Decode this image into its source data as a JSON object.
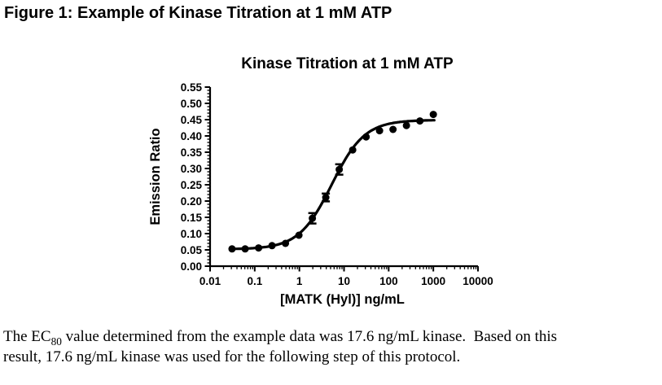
{
  "page": {
    "figure_caption": "Figure 1: Example of Kinase Titration at 1 mM ATP"
  },
  "chart_data": {
    "type": "scatter",
    "title": "Kinase Titration at 1 mM ATP",
    "xlabel": "[MATK (Hyl)] ng/mL",
    "ylabel": "Emission Ratio",
    "x_scale": "log",
    "xlim": [
      0.01,
      10000
    ],
    "ylim": [
      0,
      0.55
    ],
    "y_tick_step": 0.05,
    "y_minor_step": 0.01,
    "x_ticks": [
      "0.01",
      "0.1",
      "1",
      "10",
      "100",
      "1000",
      "10000"
    ],
    "grid": false,
    "legend_position": "none",
    "marker_color": "#000000",
    "line_color": "#000000",
    "points": {
      "x": [
        0.031,
        0.061,
        0.122,
        0.244,
        0.488,
        0.977,
        1.953,
        3.906,
        7.813,
        15.625,
        31.25,
        62.5,
        125,
        250,
        500,
        1000
      ],
      "y": [
        0.053,
        0.053,
        0.056,
        0.063,
        0.07,
        0.095,
        0.147,
        0.211,
        0.297,
        0.357,
        0.397,
        0.416,
        0.42,
        0.432,
        0.446,
        0.466
      ],
      "y_error": [
        0,
        0,
        0,
        0,
        0,
        0,
        0.016,
        0.012,
        0.016,
        0,
        0,
        0,
        0,
        0,
        0,
        0
      ]
    },
    "fit_curve": {
      "model": "sigmoidal-4PL",
      "bottom": 0.052,
      "top": 0.449,
      "ec50": 5.3,
      "hill": 1.18,
      "x_start": 0.028,
      "x_end": 1050
    }
  },
  "footer": {
    "line1_pre": "The EC",
    "line1_sub": "80",
    "line1_post": " value determined from the example data was 17.6 ng/mL kinase.  Based on this",
    "line2": "result, 17.6 ng/mL kinase was used for the following step of this protocol."
  }
}
